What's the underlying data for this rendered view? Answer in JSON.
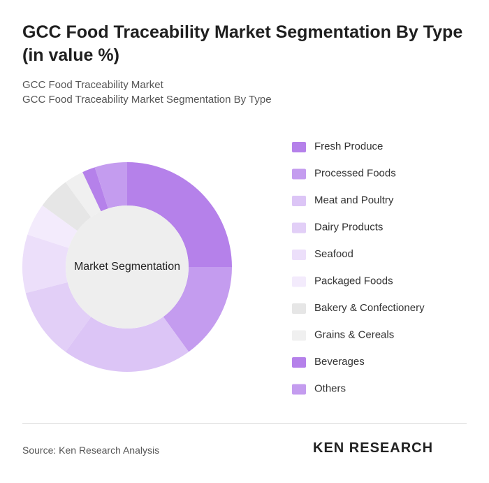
{
  "chart_data": {
    "type": "donut",
    "title": "GCC Food Traceability Market Segmentation By Type (in value %)",
    "subtitle": [
      "GCC Food Traceability Market",
      "GCC Food Traceability Market Segmentation By Type"
    ],
    "center_label": "Market Segmentation",
    "categories": [
      "Fresh Produce",
      "Processed Foods",
      "Meat and Poultry",
      "Dairy Products",
      "Seafood",
      "Packaged Foods",
      "Bakery & Confectionery",
      "Grains & Cereals",
      "Beverages",
      "Others"
    ],
    "values": [
      25,
      15,
      20,
      11,
      9,
      5,
      5,
      3,
      2,
      5
    ],
    "colors": [
      "#b581ea",
      "#c49cef",
      "#dcc5f6",
      "#e2cff7",
      "#ecdffa",
      "#f3ebfc",
      "#e6e6e6",
      "#f0f0f0",
      "#b581ea",
      "#c49cef"
    ],
    "source": "Source: Ken Research Analysis",
    "logo": "KEN RESEARCH"
  }
}
